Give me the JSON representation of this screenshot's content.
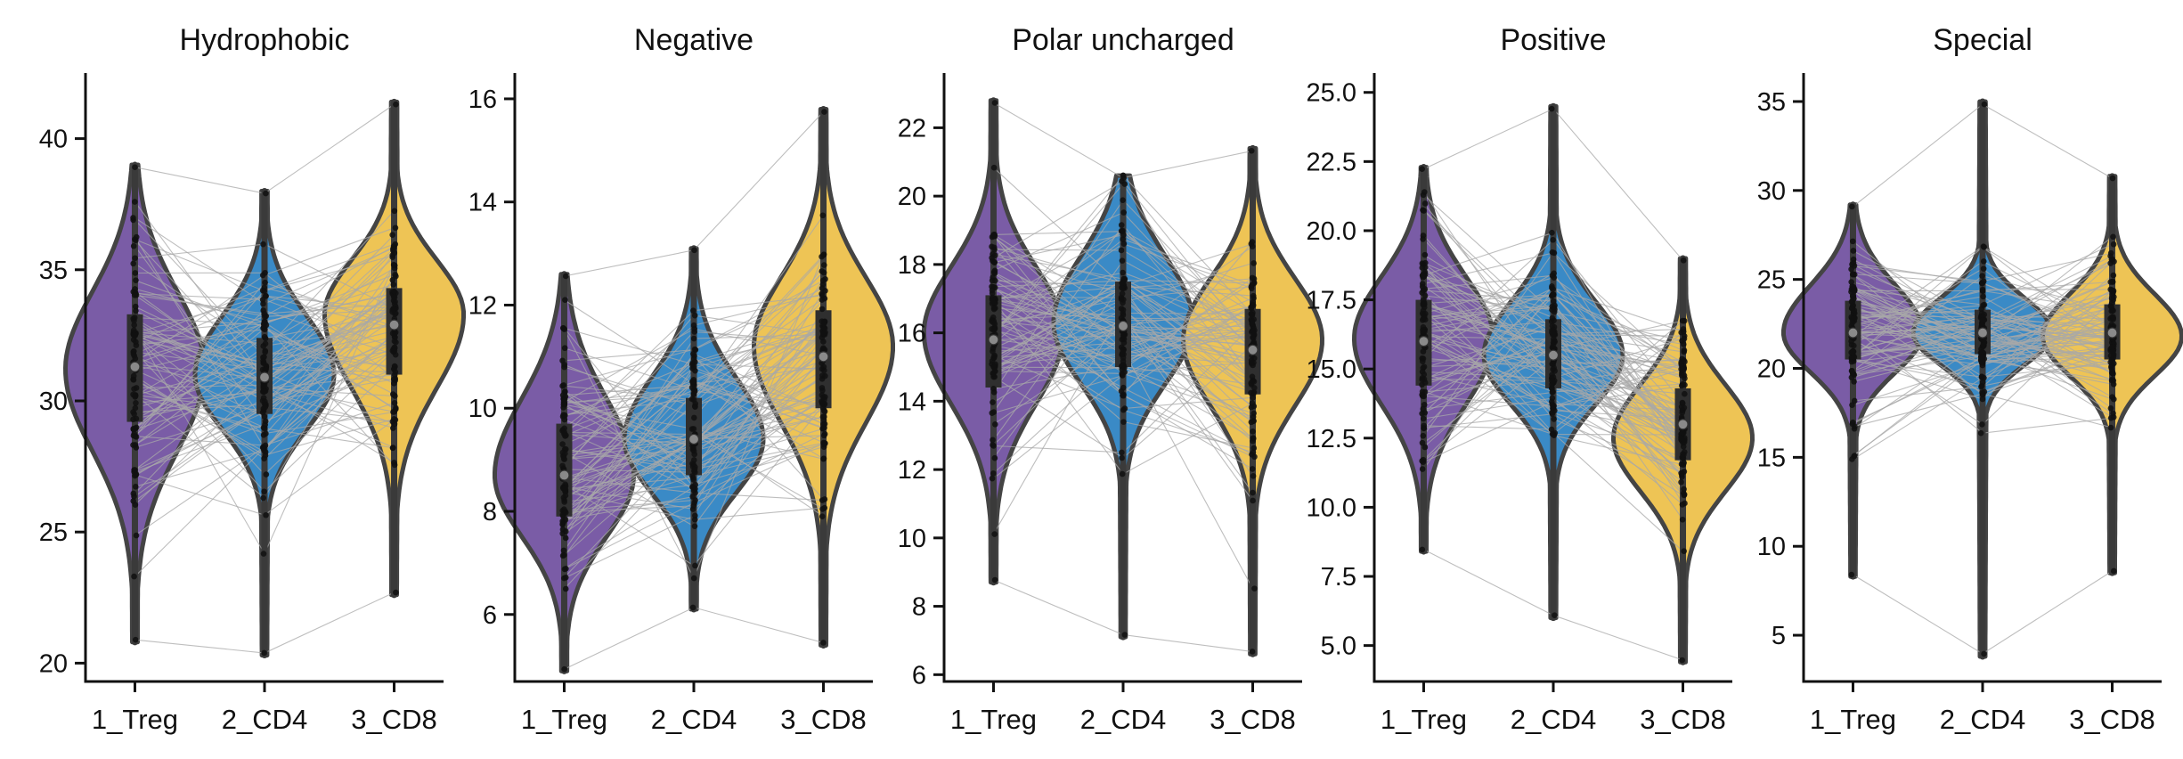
{
  "chart_data": {
    "type": "violin",
    "groups": [
      "1_Treg",
      "2_CD4",
      "3_CD8"
    ],
    "colors": {
      "1_Treg": "#7a5ca6",
      "2_CD4": "#3a8ac6",
      "3_CD8": "#eec455",
      "outline": "#444444",
      "pairing_lines": "#a8a8a8"
    },
    "legend": "none",
    "grid": false,
    "paired_lines": true,
    "panels": [
      {
        "title": "Hydrophobic",
        "ylim": [
          19.3,
          42.5
        ],
        "yticks": [
          20,
          25,
          30,
          35,
          40
        ],
        "ytick_labels": [
          "20",
          "25",
          "30",
          "35",
          "40"
        ],
        "stats": [
          {
            "group": "1_Treg",
            "min": 20.8,
            "q1": 29.2,
            "median": 31.3,
            "q3": 33.3,
            "max": 39.0,
            "mode": 31.2
          },
          {
            "group": "2_CD4",
            "min": 20.3,
            "q1": 29.5,
            "median": 30.9,
            "q3": 32.4,
            "max": 38.0,
            "mode": 31.0
          },
          {
            "group": "3_CD8",
            "min": 22.6,
            "q1": 31.0,
            "median": 32.9,
            "q3": 34.3,
            "max": 41.4,
            "mode": 33.3
          }
        ]
      },
      {
        "title": "Negative",
        "ylim": [
          4.7,
          16.5
        ],
        "yticks": [
          6,
          8,
          10,
          12,
          14,
          16
        ],
        "ytick_labels": [
          "6",
          "8",
          "10",
          "12",
          "14",
          "16"
        ],
        "stats": [
          {
            "group": "1_Treg",
            "min": 4.9,
            "q1": 7.9,
            "median": 8.7,
            "q3": 9.7,
            "max": 12.6,
            "mode": 8.7
          },
          {
            "group": "2_CD4",
            "min": 6.1,
            "q1": 8.7,
            "median": 9.4,
            "q3": 10.2,
            "max": 13.1,
            "mode": 9.4
          },
          {
            "group": "3_CD8",
            "min": 5.4,
            "q1": 10.0,
            "median": 11.0,
            "q3": 11.9,
            "max": 15.8,
            "mode": 11.2
          }
        ]
      },
      {
        "title": "Polar uncharged",
        "ylim": [
          5.8,
          23.6
        ],
        "yticks": [
          6,
          8,
          10,
          12,
          14,
          16,
          18,
          20,
          22
        ],
        "ytick_labels": [
          "6",
          "8",
          "10",
          "12",
          "14",
          "16",
          "18",
          "20",
          "22"
        ],
        "stats": [
          {
            "group": "1_Treg",
            "min": 8.7,
            "q1": 14.4,
            "median": 15.8,
            "q3": 17.1,
            "max": 22.8,
            "mode": 16.0
          },
          {
            "group": "2_CD4",
            "min": 7.1,
            "q1": 15.0,
            "median": 16.2,
            "q3": 17.5,
            "max": 20.6,
            "mode": 16.3
          },
          {
            "group": "3_CD8",
            "min": 6.6,
            "q1": 14.2,
            "median": 15.5,
            "q3": 16.7,
            "max": 21.4,
            "mode": 15.8
          }
        ]
      },
      {
        "title": "Positive",
        "ylim": [
          3.7,
          25.7
        ],
        "yticks": [
          5.0,
          7.5,
          10.0,
          12.5,
          15.0,
          17.5,
          20.0,
          22.5,
          25.0
        ],
        "ytick_labels": [
          "5.0",
          "7.5",
          "10.0",
          "12.5",
          "15.0",
          "17.5",
          "20.0",
          "22.5",
          "25.0"
        ],
        "stats": [
          {
            "group": "1_Treg",
            "min": 8.4,
            "q1": 14.4,
            "median": 16.0,
            "q3": 17.5,
            "max": 22.3,
            "mode": 16.1
          },
          {
            "group": "2_CD4",
            "min": 6.0,
            "q1": 14.3,
            "median": 15.5,
            "q3": 16.8,
            "max": 24.5,
            "mode": 15.5
          },
          {
            "group": "3_CD8",
            "min": 4.4,
            "q1": 11.7,
            "median": 13.0,
            "q3": 14.3,
            "max": 19.0,
            "mode": 12.5
          }
        ]
      },
      {
        "title": "Special",
        "ylim": [
          2.4,
          36.6
        ],
        "yticks": [
          5,
          10,
          15,
          20,
          25,
          30,
          35
        ],
        "ytick_labels": [
          "5",
          "10",
          "15",
          "20",
          "25",
          "30",
          "35"
        ],
        "stats": [
          {
            "group": "1_Treg",
            "min": 8.3,
            "q1": 20.5,
            "median": 22.0,
            "q3": 23.8,
            "max": 29.2,
            "mode": 22.0
          },
          {
            "group": "2_CD4",
            "min": 3.8,
            "q1": 20.8,
            "median": 22.0,
            "q3": 23.3,
            "max": 35.0,
            "mode": 22.0
          },
          {
            "group": "3_CD8",
            "min": 8.5,
            "q1": 20.5,
            "median": 22.0,
            "q3": 23.6,
            "max": 30.8,
            "mode": 21.8
          }
        ]
      }
    ]
  }
}
